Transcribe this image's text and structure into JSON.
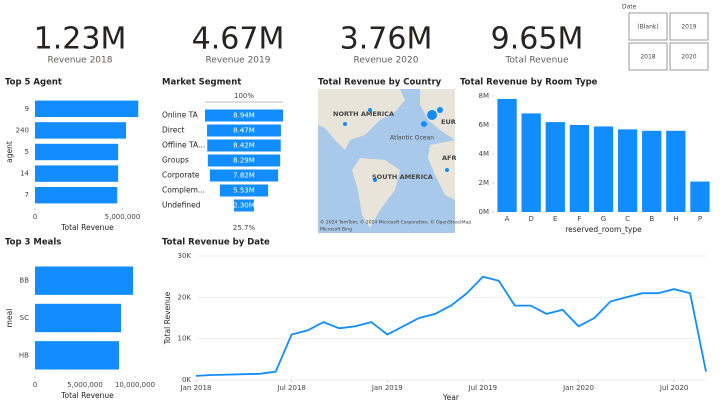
{
  "kpis": [
    {
      "value": "1.23M",
      "label": "Revenue 2018"
    },
    {
      "value": "4.67M",
      "label": "Revenue 2019"
    },
    {
      "value": "3.76M",
      "label": "Revenue 2020"
    },
    {
      "value": "9.65M",
      "label": "Total Revenue"
    }
  ],
  "slicer": {
    "title": "Date",
    "options": [
      "(Blank)",
      "2019",
      "2018",
      "2020"
    ]
  },
  "map": {
    "title": "Total Revenue by Country",
    "labels": [
      "NORTH AMERICA",
      "SOUTH AMERICA",
      "EUR",
      "AFR",
      "Atlantic Ocean"
    ],
    "attribution": "© 2024 TomTom, © 2024 Microsoft Corporation, © OpenStreetMap",
    "brand": "Microsoft Bing"
  },
  "chart_data": [
    {
      "type": "hbar",
      "title": "Top 5 Agent",
      "categories": [
        "9",
        "240",
        "5",
        "14",
        "7"
      ],
      "values": [
        5900000,
        5200000,
        4750000,
        4750000,
        4700000
      ],
      "color": "#118dff",
      "xlim": [
        0,
        6000000
      ],
      "xticks": [
        0,
        {
          "value": 5000000,
          "label": "5,000,000"
        }
      ],
      "x_label": "Total Revenue",
      "y_label": "agent"
    },
    {
      "type": "funnel",
      "title": "Market Segment",
      "categories": [
        "Online TA",
        "Direct",
        "Offline TA...",
        "Groups",
        "Corporate",
        "Complem...",
        "Undefined"
      ],
      "values": [
        8940000,
        8470000,
        8420000,
        8290000,
        7820000,
        5530000,
        2300000
      ],
      "value_labels": [
        "8.94M",
        "8.47M",
        "8.42M",
        "8.29M",
        "7.82M",
        "5.53M",
        "2.30M"
      ],
      "color": "#118dff",
      "top_label": "100%",
      "bottom_label": "25.7%"
    },
    {
      "type": "bar",
      "title": "Total Revenue by Room Type",
      "categories": [
        "A",
        "D",
        "E",
        "F",
        "G",
        "C",
        "B",
        "H",
        "P"
      ],
      "values": [
        7800000,
        6800000,
        6200000,
        6000000,
        5900000,
        5700000,
        5600000,
        5600000,
        2100000
      ],
      "color": "#118dff",
      "ylim": [
        0,
        8000000
      ],
      "yticks": [
        {
          "value": 0,
          "label": "0M"
        },
        {
          "value": 2000000,
          "label": "2M"
        },
        {
          "value": 4000000,
          "label": "4M"
        },
        {
          "value": 6000000,
          "label": "6M"
        },
        {
          "value": 8000000,
          "label": "8M"
        }
      ],
      "x_label": "reserved_room_type"
    },
    {
      "type": "hbar",
      "title": "Top 3 Meals",
      "categories": [
        "BB",
        "SC",
        "HB"
      ],
      "values": [
        9800000,
        8600000,
        8400000
      ],
      "color": "#118dff",
      "xlim": [
        0,
        10500000
      ],
      "xticks": [
        0,
        {
          "value": 5000000,
          "label": "5,000,000"
        },
        {
          "value": 10000000,
          "label": "10,000,000"
        }
      ],
      "x_label": "Total Revenue",
      "y_label": "meal"
    },
    {
      "type": "line",
      "title": "Total Revenue by Date",
      "color": "#118dff",
      "x": [
        "2018-01",
        "2018-02",
        "2018-03",
        "2018-04",
        "2018-05",
        "2018-06",
        "2018-07",
        "2018-08",
        "2018-09",
        "2018-10",
        "2018-11",
        "2018-12",
        "2019-01",
        "2019-02",
        "2019-03",
        "2019-04",
        "2019-05",
        "2019-06",
        "2019-07",
        "2019-08",
        "2019-09",
        "2019-10",
        "2019-11",
        "2019-12",
        "2020-01",
        "2020-02",
        "2020-03",
        "2020-04",
        "2020-05",
        "2020-06",
        "2020-07",
        "2020-08",
        "2020-09"
      ],
      "values": [
        1000,
        1200,
        1300,
        1400,
        1500,
        2000,
        11000,
        12000,
        14000,
        12500,
        13000,
        14000,
        11000,
        13000,
        15000,
        16000,
        18000,
        21000,
        25000,
        24000,
        18000,
        18000,
        16000,
        17000,
        13000,
        15000,
        19000,
        20000,
        21000,
        21000,
        22000,
        21000,
        2000
      ],
      "xlim": [
        "2018-01",
        "2020-09"
      ],
      "xticks": [
        {
          "value": "2018-01",
          "label": "Jan 2018"
        },
        {
          "value": "2018-07",
          "label": "Jul 2018"
        },
        {
          "value": "2019-01",
          "label": "Jan 2019"
        },
        {
          "value": "2019-07",
          "label": "Jul 2019"
        },
        {
          "value": "2020-01",
          "label": "Jan 2020"
        },
        {
          "value": "2020-07",
          "label": "Jul 2020"
        }
      ],
      "ylim": [
        0,
        30000
      ],
      "yticks": [
        {
          "value": 0,
          "label": "0K"
        },
        {
          "value": 10000,
          "label": "10K"
        },
        {
          "value": 20000,
          "label": "20K"
        },
        {
          "value": 30000,
          "label": "30K"
        }
      ],
      "x_label": "Year",
      "y_label": "Total Revenue"
    }
  ]
}
